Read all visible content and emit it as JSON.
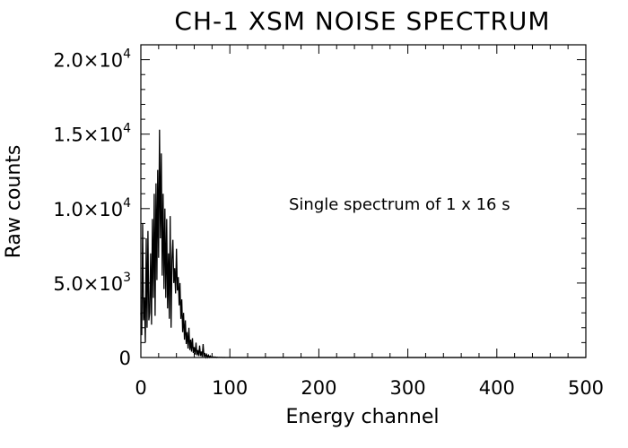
{
  "chart_data": {
    "type": "line",
    "title": "CH-1 XSM NOISE SPECTRUM",
    "xlabel": "Energy channel",
    "ylabel": "Raw counts",
    "annotation": "Single spectrum of 1 x 16 s",
    "xlim": [
      0,
      500
    ],
    "ylim": [
      0,
      21000
    ],
    "x_ticks": [
      0,
      100,
      200,
      300,
      400,
      500
    ],
    "x_tick_labels": [
      "0",
      "100",
      "200",
      "300",
      "400",
      "500"
    ],
    "y_ticks": [
      {
        "value": 0,
        "mantissa": "0",
        "exponent": ""
      },
      {
        "value": 5000,
        "mantissa": "5.0×10",
        "exponent": "3"
      },
      {
        "value": 10000,
        "mantissa": "1.0×10",
        "exponent": "4"
      },
      {
        "value": 15000,
        "mantissa": "1.5×10",
        "exponent": "4"
      },
      {
        "value": 20000,
        "mantissa": "2.0×10",
        "exponent": "4"
      }
    ],
    "grid": false,
    "line_color": "#000000",
    "series": [
      {
        "x": [
          0,
          1,
          2,
          3,
          4,
          5,
          6,
          7,
          8,
          9,
          10,
          11,
          12,
          13,
          14,
          15,
          16,
          17,
          18,
          19,
          20,
          21,
          22,
          23,
          24,
          25,
          26,
          27,
          28,
          29,
          30,
          31,
          32,
          33,
          34,
          35,
          36,
          37,
          38,
          39,
          40,
          41,
          42,
          43,
          44,
          45,
          46,
          47,
          48,
          49,
          50,
          51,
          52,
          53,
          54,
          55,
          56,
          57,
          58,
          59,
          60,
          61,
          62,
          63,
          64,
          65,
          66,
          67,
          68,
          69,
          70,
          71,
          72,
          73,
          74,
          75,
          76,
          77,
          78,
          79,
          80,
          81,
          82,
          83,
          84,
          85,
          86,
          87,
          88,
          89,
          90,
          91,
          92,
          93,
          94,
          95,
          96,
          97,
          98,
          99,
          100,
          110,
          120,
          130,
          140,
          150,
          160,
          170,
          180,
          200,
          250,
          300,
          350,
          400,
          450,
          500
        ],
        "y": [
          3000,
          1500,
          9000,
          2500,
          4000,
          1000,
          8000,
          2000,
          8500,
          2500,
          3000,
          7000,
          2200,
          9300,
          4000,
          11000,
          2800,
          11700,
          5200,
          12600,
          6700,
          15300,
          8000,
          13700,
          5500,
          11000,
          4600,
          10000,
          4000,
          9300,
          3300,
          7000,
          2600,
          9500,
          2000,
          6600,
          7900,
          5000,
          6000,
          4300,
          7300,
          4500,
          5400,
          3500,
          5000,
          2600,
          3900,
          1700,
          3000,
          1200,
          2500,
          900,
          1700,
          600,
          2000,
          500,
          1200,
          400,
          1300,
          300,
          700,
          200,
          1000,
          150,
          500,
          100,
          800,
          100,
          400,
          50,
          900,
          50,
          300,
          30,
          200,
          20,
          150,
          10,
          100,
          10,
          50,
          5,
          40,
          5,
          30,
          3,
          20,
          3,
          10,
          2,
          10,
          2,
          5,
          1,
          5,
          1,
          3,
          1,
          2,
          1,
          1,
          1,
          1,
          0,
          1,
          0,
          1,
          0,
          0,
          0,
          0,
          0,
          0,
          0,
          0,
          0
        ]
      }
    ]
  }
}
